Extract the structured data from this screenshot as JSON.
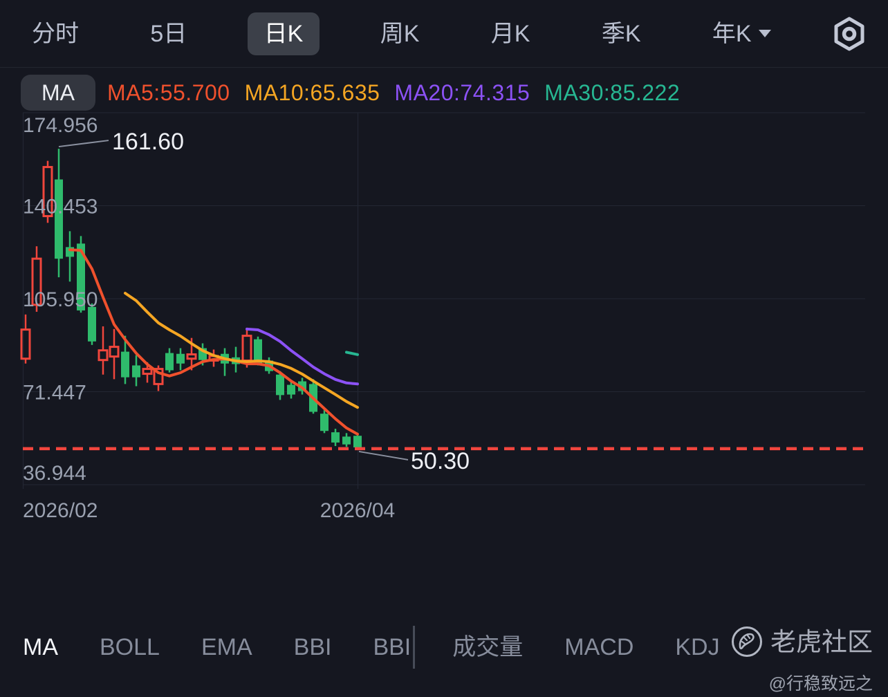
{
  "top_bar": {
    "tabs": [
      {
        "label": "分时",
        "selected": false
      },
      {
        "label": "5日",
        "selected": false
      },
      {
        "label": "日K",
        "selected": true
      },
      {
        "label": "周K",
        "selected": false
      },
      {
        "label": "月K",
        "selected": false
      },
      {
        "label": "季K",
        "selected": false
      },
      {
        "label": "年K",
        "selected": false,
        "has_caret": true
      }
    ],
    "settings_icon": "hexagon-target-icon"
  },
  "legend": {
    "button_label": "MA",
    "items": [
      {
        "label": "MA5:55.700",
        "color": "#f0512d"
      },
      {
        "label": "MA10:65.635",
        "color": "#f5a623"
      },
      {
        "label": "MA20:74.315",
        "color": "#8c52f5"
      },
      {
        "label": "MA30:85.222",
        "color": "#27b792"
      }
    ]
  },
  "chart_data": {
    "type": "candlestick",
    "y_axis": {
      "labels": [
        "174.956",
        "140.453",
        "105.950",
        "71.447",
        "36.944"
      ],
      "max": 174.956,
      "min": 36.944
    },
    "x_axis": {
      "labels": [
        {
          "text": "2026/02",
          "index": 0
        },
        {
          "text": "2026/04",
          "index": 30
        }
      ]
    },
    "colors": {
      "up": "#f0463c",
      "down": "#2fbb6c",
      "grid": "#232733",
      "axis_text": "#9aa1b0",
      "annotation_text": "#eef0f5",
      "callout_line": "#8b91a0",
      "dashed_line": "#f3463e"
    },
    "candles": [
      {
        "d": "up",
        "o": 83.7,
        "h": 100.1,
        "l": 81.9,
        "c": 94.5
      },
      {
        "d": "up",
        "o": 103.7,
        "h": 125.4,
        "l": 101.1,
        "c": 120.8
      },
      {
        "d": "up",
        "o": 136.6,
        "h": 157.1,
        "l": 134.1,
        "c": 154.8
      },
      {
        "d": "down",
        "o": 150.2,
        "h": 161.6,
        "l": 113.9,
        "c": 120.8
      },
      {
        "d": "down",
        "o": 125.1,
        "h": 131.0,
        "l": 112.3,
        "c": 121.5
      },
      {
        "d": "down",
        "o": 126.4,
        "h": 129.2,
        "l": 100.8,
        "c": 101.6
      },
      {
        "d": "down",
        "o": 102.9,
        "h": 104.2,
        "l": 88.8,
        "c": 90.1
      },
      {
        "d": "up",
        "o": 83.2,
        "h": 95.7,
        "l": 77.8,
        "c": 86.8
      },
      {
        "d": "up",
        "o": 84.5,
        "h": 94.7,
        "l": 76.1,
        "c": 88.1
      },
      {
        "d": "down",
        "o": 86.3,
        "h": 92.2,
        "l": 74.3,
        "c": 76.8
      },
      {
        "d": "down",
        "o": 81.2,
        "h": 85.0,
        "l": 73.5,
        "c": 76.8
      },
      {
        "d": "up",
        "o": 78.1,
        "h": 82.4,
        "l": 74.8,
        "c": 79.9
      },
      {
        "d": "up",
        "o": 74.3,
        "h": 81.2,
        "l": 71.7,
        "c": 79.9
      },
      {
        "d": "down",
        "o": 85.8,
        "h": 87.6,
        "l": 78.6,
        "c": 79.4
      },
      {
        "d": "down",
        "o": 85.5,
        "h": 87.6,
        "l": 79.4,
        "c": 81.9
      },
      {
        "d": "up",
        "o": 83.7,
        "h": 91.4,
        "l": 79.4,
        "c": 85.3
      },
      {
        "d": "down",
        "o": 87.6,
        "h": 89.4,
        "l": 81.2,
        "c": 83.2
      },
      {
        "d": "up",
        "o": 83.0,
        "h": 87.1,
        "l": 80.7,
        "c": 84.7
      },
      {
        "d": "down",
        "o": 85.5,
        "h": 87.6,
        "l": 77.3,
        "c": 81.9
      },
      {
        "d": "down",
        "o": 84.2,
        "h": 88.1,
        "l": 78.6,
        "c": 81.7
      },
      {
        "d": "up",
        "o": 83.0,
        "h": 95.2,
        "l": 80.4,
        "c": 92.2
      },
      {
        "d": "down",
        "o": 90.9,
        "h": 91.9,
        "l": 81.2,
        "c": 81.9
      },
      {
        "d": "down",
        "o": 83.0,
        "h": 84.2,
        "l": 78.1,
        "c": 79.1
      },
      {
        "d": "down",
        "o": 77.8,
        "h": 79.1,
        "l": 68.4,
        "c": 70.2
      },
      {
        "d": "down",
        "o": 74.0,
        "h": 75.5,
        "l": 68.9,
        "c": 70.4
      },
      {
        "d": "down",
        "o": 75.3,
        "h": 76.6,
        "l": 70.4,
        "c": 71.7
      },
      {
        "d": "down",
        "o": 74.3,
        "h": 76.1,
        "l": 63.3,
        "c": 64.0
      },
      {
        "d": "down",
        "o": 63.3,
        "h": 64.6,
        "l": 56.1,
        "c": 56.9
      },
      {
        "d": "down",
        "o": 56.4,
        "h": 57.7,
        "l": 51.3,
        "c": 52.6
      },
      {
        "d": "down",
        "o": 54.8,
        "h": 56.1,
        "l": 51.0,
        "c": 51.9
      },
      {
        "d": "down",
        "o": 55.1,
        "h": 56.1,
        "l": 50.3,
        "c": 50.8
      }
    ],
    "ma_series": [
      {
        "name": "MA5",
        "color": "#f0512d",
        "start_index": 4,
        "values": [
          124.1,
          123.9,
          117.0,
          106.5,
          96.4,
          90.8,
          85.7,
          81.6,
          78.5,
          77.3,
          78.5,
          80.6,
          82.6,
          83.4,
          83.6,
          82.9,
          81.8,
          81.8,
          81.1,
          78.5,
          75.4,
          72.9,
          69.0,
          65.2,
          61.4,
          58.0,
          55.7
        ]
      },
      {
        "name": "MA10",
        "color": "#f5a623",
        "start_index": 9,
        "values": [
          108.0,
          105.2,
          101.0,
          97.0,
          94.4,
          92.1,
          89.3,
          86.7,
          84.9,
          83.7,
          82.9,
          82.6,
          82.9,
          82.6,
          81.6,
          80.1,
          78.0,
          75.4,
          72.9,
          70.4,
          67.8,
          65.635
        ]
      },
      {
        "name": "MA20",
        "color": "#8c52f5",
        "start_index": 20,
        "values": [
          94.7,
          94.4,
          92.6,
          90.1,
          86.7,
          83.7,
          80.6,
          78.1,
          76.0,
          74.7,
          74.315
        ]
      },
      {
        "name": "MA30",
        "color": "#27b792",
        "start_index": 29,
        "values": [
          86.1,
          85.222
        ]
      }
    ],
    "annotations": {
      "high": {
        "index": 3,
        "price": 161.6,
        "label": "161.60"
      },
      "low": {
        "index": 30,
        "price": 50.3,
        "label": "50.30"
      },
      "dashed_line_price": 50.3
    }
  },
  "bottom_bar": {
    "tabs": [
      {
        "label": "MA",
        "selected": true
      },
      {
        "label": "BOLL",
        "selected": false
      },
      {
        "label": "EMA",
        "selected": false
      },
      {
        "label": "BBI",
        "selected": false
      },
      {
        "label": "BBI",
        "selected": false,
        "divider_after": true
      },
      {
        "label": "成交量",
        "selected": false
      },
      {
        "label": "MACD",
        "selected": false
      },
      {
        "label": "KDJ",
        "selected": false
      }
    ]
  },
  "watermark": {
    "brand": "老虎社区",
    "handle": "@行稳致远之"
  }
}
